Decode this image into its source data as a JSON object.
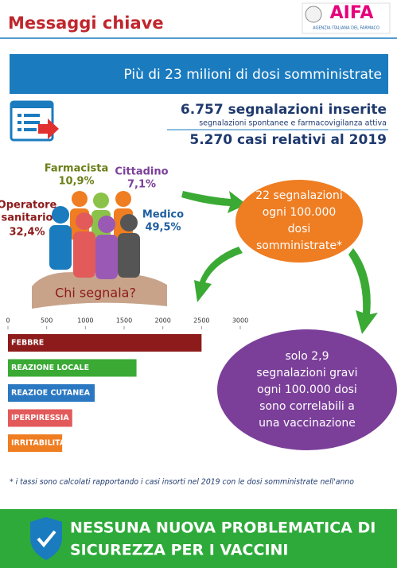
{
  "header": {
    "title": "Messaggi chiave",
    "logo": "AIFA",
    "logo_sub": "AGENZIA ITALIANA DEL FARMACO"
  },
  "banner": "Più di 23 milioni di dosi somministrate",
  "reports": {
    "inserted": "6.757 segnalazioni inserite",
    "inserted_note": "segnalazioni spontanee e farmacovigilanza attiva",
    "cases_2019": "5.270 casi relativi al 2019"
  },
  "reporters": {
    "caption": "Chi segnala?",
    "groups": [
      {
        "label": [
          "Farmacista"
        ],
        "share": "10,9%"
      },
      {
        "label": [
          "Cittadino"
        ],
        "share": "7,1%"
      },
      {
        "label": [
          "Operatore",
          "sanitario"
        ],
        "share": "32,4%"
      },
      {
        "label": [
          "Medico"
        ],
        "share": "49,5%"
      }
    ]
  },
  "rate_all": [
    "22 segnalazioni",
    "ogni 100.000",
    "dosi",
    "somministrate*"
  ],
  "rate_serious": [
    "solo 2,9",
    "segnalazioni gravi",
    "ogni 100.000 dosi",
    "sono correlabili a",
    "una vaccinazione"
  ],
  "chart_data": {
    "type": "bar",
    "orientation": "horizontal",
    "categories": [
      "FEBBRE",
      "REAZIONE LOCALE",
      "REAZIOE CUTANEA",
      "IPERPIRESSIA",
      "IRRITABILITA'"
    ],
    "values": [
      2500,
      1660,
      1120,
      830,
      700
    ],
    "colors": [
      "#8e1b1b",
      "#3aaa35",
      "#2a78c2",
      "#e25a5a",
      "#ef7d22"
    ],
    "xlim": [
      0,
      3000
    ],
    "xticks": [
      0,
      500,
      1000,
      1500,
      2000,
      2500,
      3000
    ]
  },
  "footnote": "* i tassi sono calcolati rapportando i casi insorti nel 2019 con le dosi somministrate nell'anno",
  "footer": [
    "NESSUNA NUOVA PROBLEMATICA DI",
    "SICUREZZA PER I VACCINI"
  ]
}
